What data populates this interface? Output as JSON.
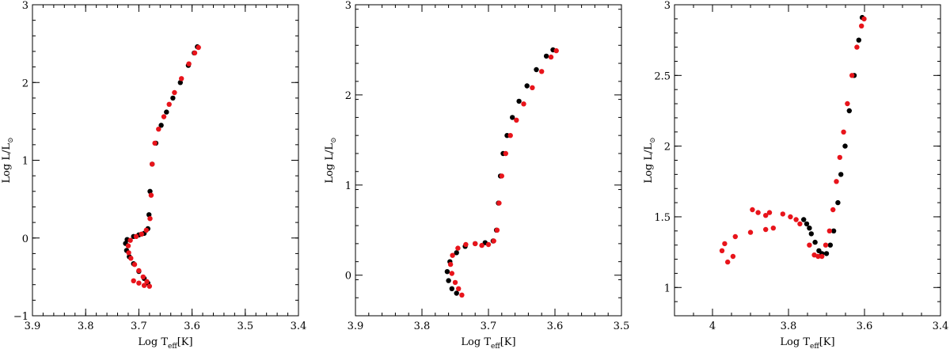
{
  "figure": {
    "colors": {
      "series_a": "#000000",
      "series_b": "#e8141b",
      "frame": "#000000",
      "background": "#ffffff"
    }
  },
  "chart_data": [
    {
      "type": "scatter",
      "xlabel": "Log T_eff[K]",
      "ylabel": "Log L/L_⊙",
      "xlim": [
        3.9,
        3.4
      ],
      "ylim": [
        -1,
        3
      ],
      "x_reversed": true,
      "xticks": [
        3.9,
        3.8,
        3.7,
        3.6,
        3.5,
        3.4
      ],
      "xtick_labels": [
        "3.9",
        "3.8",
        "3.7",
        "3.6",
        "3.5",
        "3.4"
      ],
      "yticks": [
        -1,
        0,
        1,
        2,
        3
      ],
      "ytick_labels": [
        "−1",
        "0",
        "1",
        "2",
        "3"
      ],
      "grid": false,
      "series": [
        {
          "color": "#000000",
          "x": [
            3.683,
            3.69,
            3.7,
            3.71,
            3.718,
            3.723,
            3.725,
            3.722,
            3.71,
            3.7,
            3.69,
            3.683,
            3.681,
            3.679,
            3.675,
            3.668,
            3.658,
            3.648,
            3.636,
            3.622,
            3.607,
            3.596,
            3.59
          ],
          "y": [
            -0.58,
            -0.52,
            -0.43,
            -0.33,
            -0.24,
            -0.16,
            -0.07,
            -0.02,
            0.02,
            0.04,
            0.06,
            0.12,
            0.3,
            0.6,
            0.95,
            1.22,
            1.45,
            1.62,
            1.8,
            2.0,
            2.22,
            2.38,
            2.46
          ]
        },
        {
          "color": "#e8141b",
          "x": [
            3.71,
            3.7,
            3.69,
            3.68,
            3.685,
            3.692,
            3.7,
            3.708,
            3.715,
            3.719,
            3.72,
            3.716,
            3.705,
            3.695,
            3.686,
            3.679,
            3.677,
            3.675,
            3.67,
            3.663,
            3.653,
            3.643,
            3.633,
            3.62,
            3.606,
            3.595,
            3.588
          ],
          "y": [
            -0.55,
            -0.58,
            -0.61,
            -0.62,
            -0.56,
            -0.5,
            -0.42,
            -0.34,
            -0.26,
            -0.19,
            -0.1,
            -0.03,
            0.02,
            0.05,
            0.1,
            0.25,
            0.55,
            0.95,
            1.22,
            1.4,
            1.56,
            1.72,
            1.87,
            2.05,
            2.24,
            2.38,
            2.45
          ]
        }
      ]
    },
    {
      "type": "scatter",
      "xlabel": "Log T_eff[K]",
      "ylabel": "Log L/L_⊙",
      "xlim": [
        3.9,
        3.5
      ],
      "ylim": [
        -0.45,
        3
      ],
      "x_reversed": true,
      "xticks": [
        3.9,
        3.8,
        3.7,
        3.6,
        3.5
      ],
      "xtick_labels": [
        "3.9",
        "3.8",
        "3.7",
        "3.6",
        "3.5"
      ],
      "yticks": [
        0,
        1,
        2,
        3
      ],
      "ytick_labels": [
        "0",
        "1",
        "2",
        "3"
      ],
      "grid": false,
      "series": [
        {
          "color": "#000000",
          "x": [
            3.748,
            3.755,
            3.76,
            3.762,
            3.758,
            3.748,
            3.735,
            3.72,
            3.705,
            3.693,
            3.688,
            3.685,
            3.682,
            3.678,
            3.672,
            3.664,
            3.654,
            3.642,
            3.628,
            3.613,
            3.603
          ],
          "y": [
            -0.2,
            -0.15,
            -0.06,
            0.04,
            0.15,
            0.25,
            0.32,
            0.35,
            0.36,
            0.38,
            0.5,
            0.8,
            1.1,
            1.35,
            1.55,
            1.75,
            1.93,
            2.1,
            2.28,
            2.43,
            2.5
          ]
        },
        {
          "color": "#e8141b",
          "x": [
            3.74,
            3.745,
            3.75,
            3.755,
            3.757,
            3.754,
            3.746,
            3.734,
            3.72,
            3.71,
            3.7,
            3.692,
            3.687,
            3.684,
            3.68,
            3.674,
            3.667,
            3.658,
            3.647,
            3.634,
            3.62,
            3.606,
            3.598
          ],
          "y": [
            -0.22,
            -0.15,
            -0.08,
            0.02,
            0.12,
            0.22,
            0.3,
            0.34,
            0.35,
            0.33,
            0.34,
            0.38,
            0.5,
            0.8,
            1.1,
            1.35,
            1.55,
            1.72,
            1.9,
            2.08,
            2.26,
            2.42,
            2.49
          ]
        }
      ]
    },
    {
      "type": "scatter",
      "xlabel": "Log T_eff[K]",
      "ylabel": "Log L/L_⊙",
      "xlim": [
        4.1,
        3.4
      ],
      "ylim": [
        0.8,
        3
      ],
      "x_reversed": true,
      "xticks": [
        4.0,
        3.8,
        3.6,
        3.4
      ],
      "xtick_labels": [
        "4",
        "3.8",
        "3.6",
        "3.4"
      ],
      "yticks": [
        1,
        1.5,
        2,
        2.5,
        3
      ],
      "ytick_labels": [
        "1",
        "1.5",
        "2",
        "2.5",
        "3"
      ],
      "grid": false,
      "series": [
        {
          "color": "#000000",
          "x": [
            3.712,
            3.72,
            3.73,
            3.74,
            3.745,
            3.752,
            3.76,
            3.7,
            3.69,
            3.681,
            3.67,
            3.662,
            3.651,
            3.64,
            3.627,
            3.615,
            3.606
          ],
          "y": [
            1.24,
            1.26,
            1.32,
            1.38,
            1.42,
            1.45,
            1.48,
            1.24,
            1.3,
            1.4,
            1.6,
            1.8,
            2.0,
            2.25,
            2.5,
            2.75,
            2.91
          ]
        },
        {
          "color": "#e8141b",
          "x": [
            3.96,
            3.946,
            3.975,
            3.968,
            3.94,
            3.9,
            3.86,
            3.84,
            3.86,
            3.895,
            3.88,
            3.85,
            3.815,
            3.795,
            3.78,
            3.77,
            3.745,
            3.732,
            3.722,
            3.712,
            3.702,
            3.692,
            3.683,
            3.674,
            3.665,
            3.655,
            3.645,
            3.633,
            3.62,
            3.608,
            3.601
          ],
          "y": [
            1.18,
            1.22,
            1.26,
            1.31,
            1.36,
            1.39,
            1.41,
            1.42,
            1.51,
            1.55,
            1.53,
            1.53,
            1.52,
            1.5,
            1.48,
            1.45,
            1.3,
            1.23,
            1.22,
            1.22,
            1.3,
            1.4,
            1.55,
            1.75,
            1.92,
            2.1,
            2.3,
            2.5,
            2.7,
            2.85,
            2.9
          ]
        }
      ]
    }
  ]
}
